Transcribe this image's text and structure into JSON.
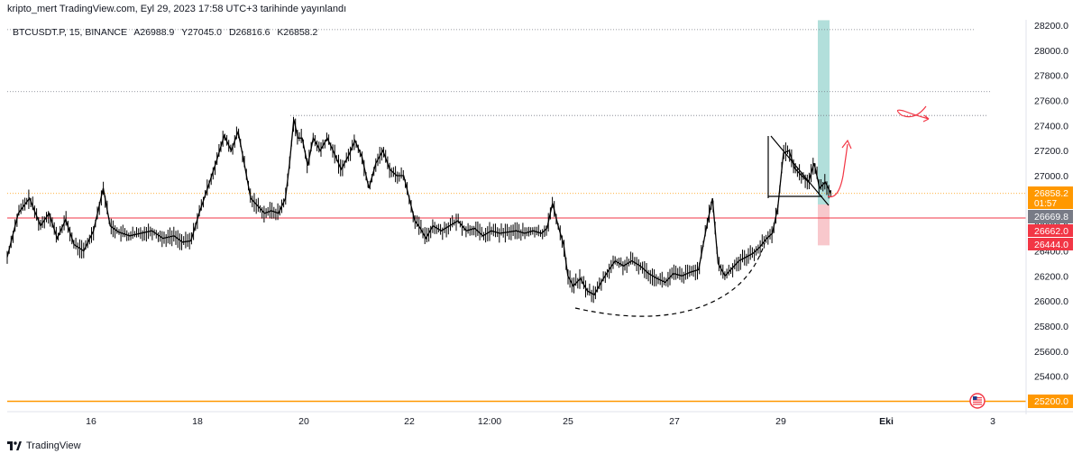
{
  "header": {
    "published": "kripto_mert TradingView.com, Eyl 29, 2023 17:58 UTC+3 tarihinde yayınlandı"
  },
  "legend": {
    "symbol": "BTCUSDT.P, 15, BINANCE",
    "open": "A26988.9",
    "high": "Y27045.0",
    "low": "D26816.6",
    "close": "K26858.2"
  },
  "footer": {
    "brand": "TradingView"
  },
  "colors": {
    "candle": "#000000",
    "red_line": "#f23645",
    "orange_line": "#ff9800",
    "price_tag_current": "#ff9800",
    "price_tag_grey": "#787b86",
    "price_tag_red": "#f23645",
    "target_zone": "#b2dfdb",
    "stop_zone": "#f8c8cc",
    "annotation": "#f23645"
  },
  "chart_data": {
    "type": "candlestick",
    "symbol": "BTCUSDT.P",
    "timeframe": "15",
    "exchange": "BINANCE",
    "ylim": [
      24980,
      28240
    ],
    "y_ticks": [
      25400,
      25600,
      25800,
      26000,
      26200,
      26400,
      26600,
      26800,
      27000,
      27200,
      27400,
      27600,
      27800,
      28000,
      28200
    ],
    "y_tick_labels": [
      "25400.0",
      "25600.0",
      "25800.0",
      "26000.0",
      "26200.0",
      "26400.0",
      "26600.0",
      "26800.0",
      "27000.0",
      "27200.0",
      "27400.0",
      "27600.0",
      "27800.0",
      "28000.0",
      "28200.0"
    ],
    "x_labels": [
      "16",
      "18",
      "20",
      "22",
      "12:00",
      "25",
      "27",
      "29",
      "Eki",
      "3"
    ],
    "bold_x_labels": [
      "Eki"
    ],
    "price_tags": [
      {
        "value": 26858.2,
        "label": "26858.2",
        "sublabel": "01:57",
        "kind": "current"
      },
      {
        "value": 26669.8,
        "label": "26669.8",
        "kind": "grey"
      },
      {
        "value": 26662.0,
        "label": "26662.0",
        "kind": "red"
      },
      {
        "value": 26444.0,
        "label": "26444.0",
        "kind": "red"
      },
      {
        "value": 25200.0,
        "label": "25200.0",
        "kind": "orange"
      }
    ],
    "horizontal_levels": [
      {
        "value": 28165,
        "style": "dotted"
      },
      {
        "value": 27670,
        "style": "dotted"
      },
      {
        "value": 27480,
        "style": "dotted"
      },
      {
        "value": 26662,
        "style": "solid-red"
      },
      {
        "value": 25200,
        "style": "solid-orange"
      }
    ],
    "price_path": [
      [
        0,
        26350
      ],
      [
        0.8,
        26700
      ],
      [
        1.6,
        26820
      ],
      [
        2.4,
        26600
      ],
      [
        3.0,
        26700
      ],
      [
        3.6,
        26500
      ],
      [
        4.2,
        26650
      ],
      [
        4.8,
        26450
      ],
      [
        5.5,
        26400
      ],
      [
        6.2,
        26560
      ],
      [
        6.9,
        26900
      ],
      [
        7.4,
        26600
      ],
      [
        8.0,
        26550
      ],
      [
        8.8,
        26520
      ],
      [
        9.6,
        26540
      ],
      [
        10.4,
        26560
      ],
      [
        11.2,
        26500
      ],
      [
        12.0,
        26520
      ],
      [
        12.6,
        26470
      ],
      [
        13.2,
        26480
      ],
      [
        13.8,
        26700
      ],
      [
        14.4,
        26900
      ],
      [
        15.0,
        27100
      ],
      [
        15.6,
        27320
      ],
      [
        16.1,
        27200
      ],
      [
        16.6,
        27350
      ],
      [
        17.0,
        27120
      ],
      [
        17.5,
        26820
      ],
      [
        18.0,
        26760
      ],
      [
        18.5,
        26700
      ],
      [
        19.0,
        26720
      ],
      [
        19.5,
        26700
      ],
      [
        20.0,
        26820
      ],
      [
        20.3,
        27100
      ],
      [
        20.6,
        27450
      ],
      [
        20.9,
        27300
      ],
      [
        21.2,
        27300
      ],
      [
        21.6,
        27080
      ],
      [
        22.0,
        27300
      ],
      [
        22.5,
        27200
      ],
      [
        23.0,
        27300
      ],
      [
        23.5,
        27180
      ],
      [
        24.0,
        27050
      ],
      [
        24.5,
        27150
      ],
      [
        25.0,
        27280
      ],
      [
        25.5,
        27150
      ],
      [
        26.0,
        26900
      ],
      [
        26.5,
        27100
      ],
      [
        27.0,
        27200
      ],
      [
        27.5,
        27050
      ],
      [
        28.0,
        27000
      ],
      [
        28.5,
        27000
      ],
      [
        28.9,
        26820
      ],
      [
        29.3,
        26640
      ],
      [
        29.7,
        26580
      ],
      [
        30.1,
        26500
      ],
      [
        30.6,
        26600
      ],
      [
        31.2,
        26560
      ],
      [
        31.8,
        26600
      ],
      [
        32.4,
        26640
      ],
      [
        33.0,
        26560
      ],
      [
        33.6,
        26580
      ],
      [
        34.2,
        26520
      ],
      [
        34.8,
        26560
      ],
      [
        35.4,
        26540
      ],
      [
        36.0,
        26550
      ],
      [
        36.6,
        26560
      ],
      [
        37.2,
        26540
      ],
      [
        37.8,
        26560
      ],
      [
        38.4,
        26540
      ],
      [
        38.8,
        26580
      ],
      [
        39.2,
        26780
      ],
      [
        39.6,
        26600
      ],
      [
        40.0,
        26450
      ],
      [
        40.3,
        26200
      ],
      [
        40.7,
        26120
      ],
      [
        41.2,
        26180
      ],
      [
        41.7,
        26080
      ],
      [
        42.2,
        26050
      ],
      [
        42.7,
        26150
      ],
      [
        43.2,
        26240
      ],
      [
        43.7,
        26320
      ],
      [
        44.3,
        26280
      ],
      [
        44.9,
        26320
      ],
      [
        45.5,
        26280
      ],
      [
        46.1,
        26220
      ],
      [
        46.7,
        26180
      ],
      [
        47.3,
        26150
      ],
      [
        47.9,
        26220
      ],
      [
        48.5,
        26200
      ],
      [
        49.1,
        26230
      ],
      [
        49.7,
        26250
      ],
      [
        50.2,
        26550
      ],
      [
        50.7,
        26820
      ],
      [
        51.1,
        26300
      ],
      [
        51.6,
        26200
      ],
      [
        52.1,
        26260
      ],
      [
        52.6,
        26320
      ],
      [
        53.1,
        26350
      ],
      [
        53.6,
        26380
      ],
      [
        54.1,
        26430
      ],
      [
        54.6,
        26500
      ],
      [
        55.0,
        26540
      ],
      [
        55.4,
        26750
      ],
      [
        55.8,
        27180
      ],
      [
        56.2,
        27200
      ],
      [
        56.6,
        27060
      ],
      [
        57.1,
        27000
      ],
      [
        57.6,
        26950
      ],
      [
        58.0,
        27100
      ],
      [
        58.4,
        26900
      ],
      [
        58.8,
        26950
      ],
      [
        59.2,
        26860
      ]
    ],
    "scatter_wicks": 420,
    "annotations": [
      {
        "type": "triangle-pattern",
        "points": [
          [
            55.7,
            27300
          ],
          [
            59.2,
            26880
          ],
          [
            55.7,
            26860
          ]
        ]
      },
      {
        "type": "rounded-bottom-arc",
        "from": [
          40.5,
          25980
        ],
        "to": [
          55.0,
          26470
        ]
      },
      {
        "type": "projection-arrow",
        "direction": "up"
      },
      {
        "type": "infinity-scribble"
      }
    ],
    "long_position": {
      "target": 28240,
      "entry": 26770,
      "stop": 26444
    }
  }
}
